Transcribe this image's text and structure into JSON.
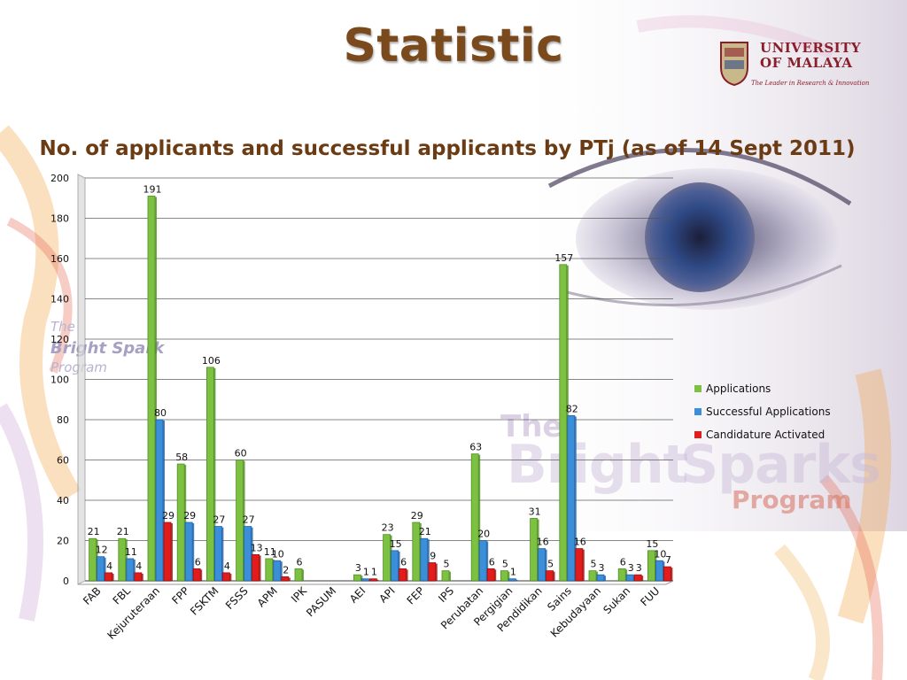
{
  "slide": {
    "title": "Statistic",
    "subtitle": "No. of applicants and successful applicants by PTj (as of 14 Sept 2011)",
    "logo": {
      "line1": "UNIVERSITY",
      "line2": "OF MALAYA",
      "tagline": "The Leader in Research & Innovation",
      "icon": "university-crest-icon"
    },
    "watermark_small": {
      "the": "The",
      "bright": "Bright Spark",
      "program": "Program"
    },
    "watermark_large": {
      "the": "The",
      "bright": "Bright",
      "sparks": "Sparks",
      "program": "Program"
    }
  },
  "colors": {
    "title": "#7a4a1c",
    "applications": "#7cc142",
    "successful": "#3b8fd9",
    "activated": "#e31b1b"
  },
  "chart_data": {
    "type": "bar",
    "title": "No. of applicants and successful applicants by PTj (as of 14 Sept 2011)",
    "xlabel": "",
    "ylabel": "",
    "ylim": [
      0,
      200
    ],
    "yticks": [
      "0",
      "20",
      "40",
      "60",
      "80",
      "100",
      "120",
      "140",
      "160",
      "180",
      "200"
    ],
    "grid": true,
    "legend_position": "right",
    "categories": [
      "FAB",
      "FBL",
      "Kejuruteraan",
      "FPP",
      "FSKTM",
      "FSSS",
      "APM",
      "IPK",
      "PASUM",
      "AEI",
      "API",
      "FEP",
      "IPS",
      "Perubatan",
      "Pergigian",
      "Pendidikan",
      "Sains",
      "Kebudayaan",
      "Sukan",
      "FUU"
    ],
    "series": [
      {
        "name": "Applications",
        "values": [
          21,
          21,
          191,
          58,
          106,
          60,
          11,
          6,
          null,
          3,
          23,
          29,
          5,
          63,
          5,
          31,
          157,
          5,
          6,
          15
        ]
      },
      {
        "name": "Successful Applications",
        "values": [
          12,
          11,
          80,
          29,
          27,
          27,
          10,
          null,
          null,
          1,
          15,
          21,
          null,
          20,
          1,
          16,
          82,
          3,
          3,
          10
        ]
      },
      {
        "name": "Candidature Activated",
        "values": [
          4,
          4,
          29,
          6,
          4,
          13,
          2,
          null,
          null,
          1,
          6,
          9,
          null,
          6,
          null,
          5,
          16,
          null,
          3,
          7
        ]
      }
    ]
  }
}
